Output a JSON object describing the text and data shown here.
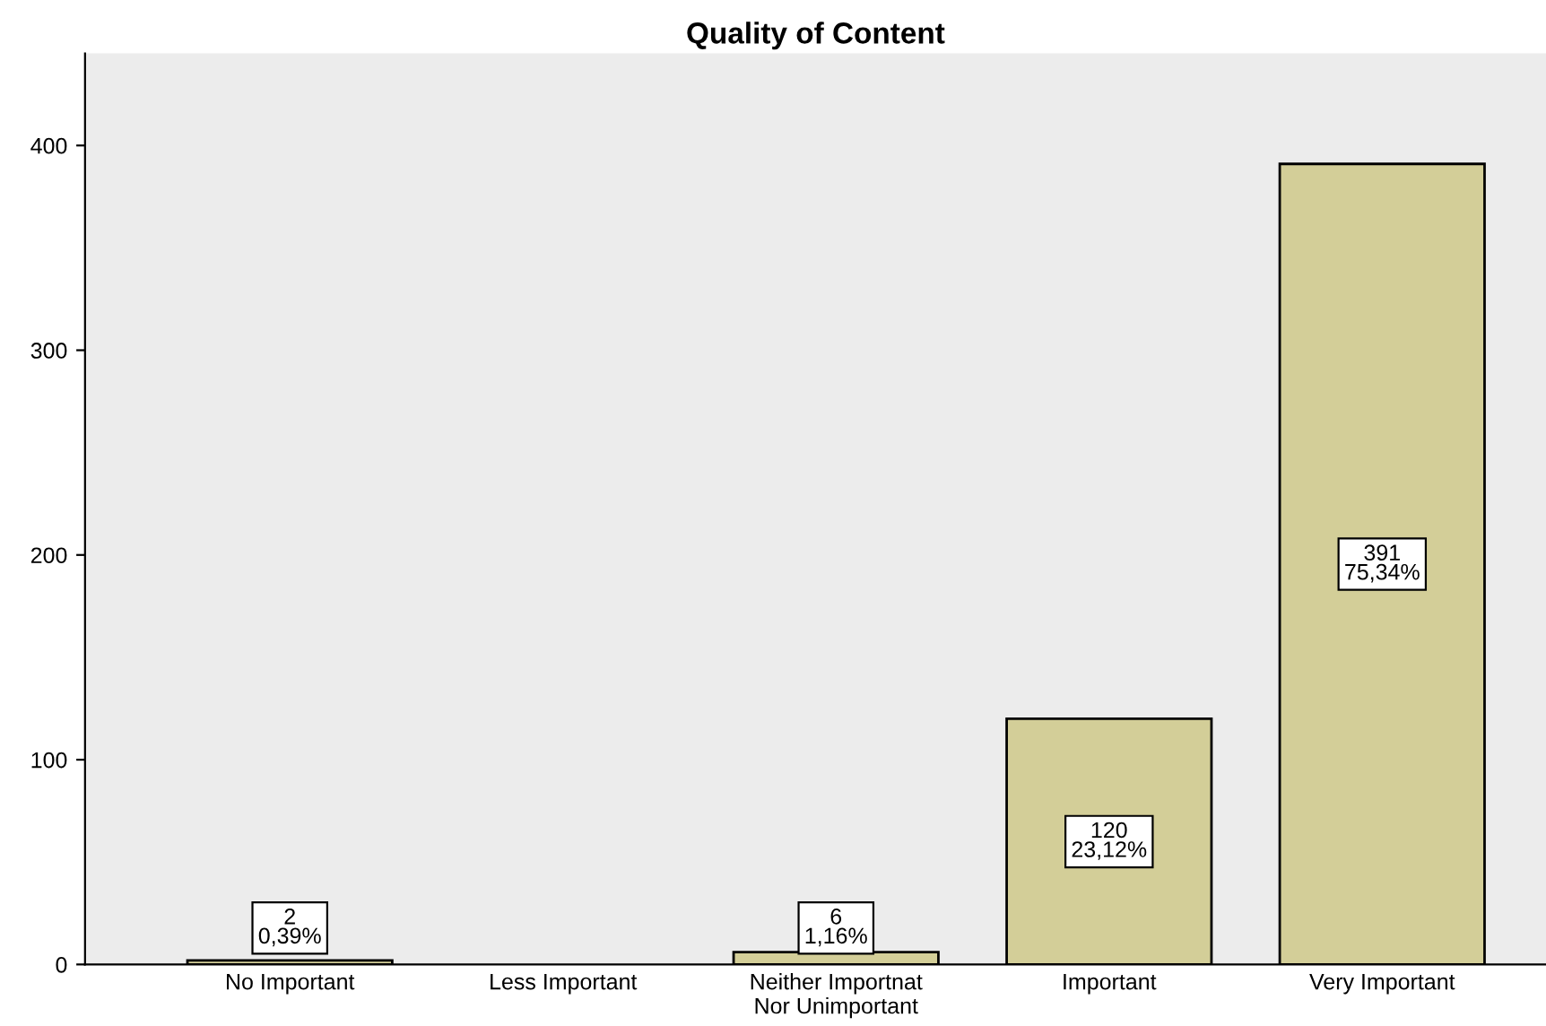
{
  "chart_data": {
    "type": "bar",
    "title": "Quality of Content",
    "categories": [
      "No Important",
      "Less Important",
      "Neither Importnat\nNor Unimportant",
      "Important",
      "Very Important"
    ],
    "values": [
      2,
      0,
      6,
      120,
      391
    ],
    "value_labels": [
      "2\n0,39%",
      null,
      "6\n1,16%",
      "120\n23,12%",
      "391\n75,34%"
    ],
    "color": "#d3ce98",
    "ylim": [
      0,
      445
    ],
    "yticks": [
      0,
      100,
      200,
      300,
      400
    ],
    "grid": false,
    "legend": false
  }
}
